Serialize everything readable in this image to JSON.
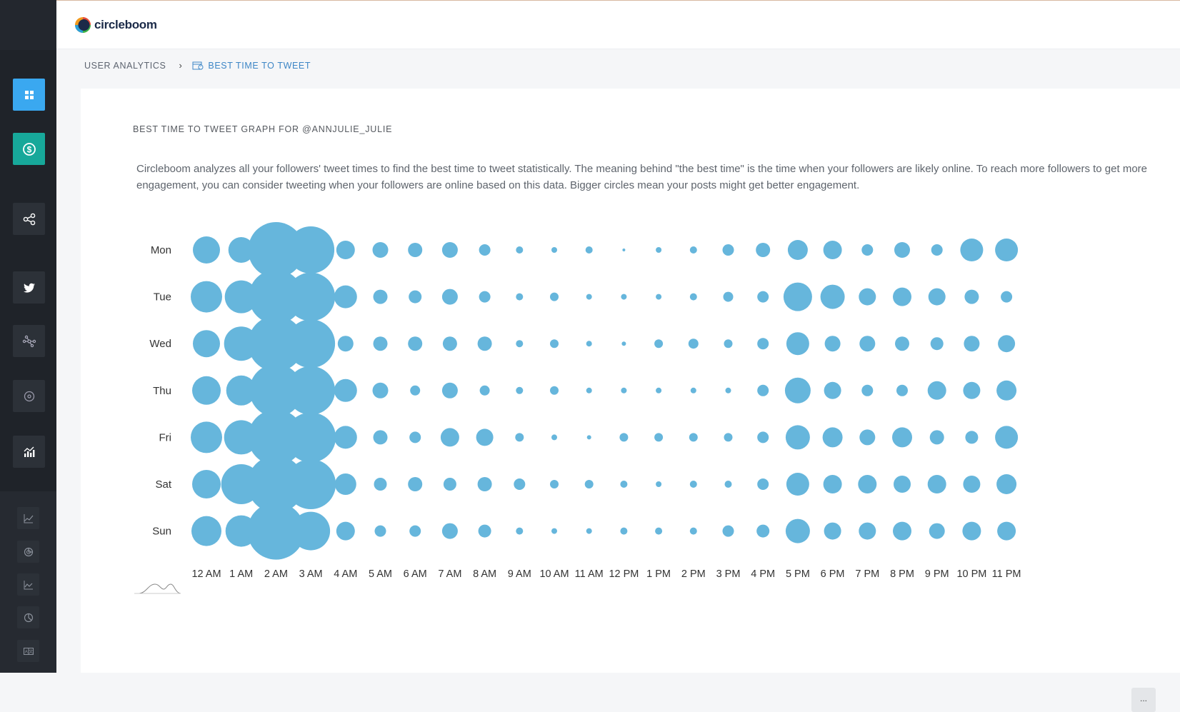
{
  "app": {
    "brand": "circleboom"
  },
  "breadcrumb": {
    "parent": "USER ANALYTICS",
    "current": "BEST TIME TO TWEET"
  },
  "card": {
    "title": "BEST TIME TO TWEET GRAPH FOR @ANNJULIE_JULIE",
    "description": "Circleboom analyzes all your followers' tweet times to find the best time to tweet statistically. The meaning behind \"the best time\" is the time when your followers are likely online. To reach more followers to get more engagement, you can consider tweeting when your followers are online based on this data. Bigger circles mean your posts might get better engagement."
  },
  "menu_button": {
    "label": "..."
  },
  "sidebar": {
    "items": [
      {
        "icon": "dashboard-icon",
        "color": "#3aa8f0"
      },
      {
        "icon": "dollar-circle-icon",
        "color": "#17a89a"
      },
      {
        "icon": "share-icon"
      },
      {
        "icon": "twitter-icon"
      },
      {
        "icon": "network-icon"
      },
      {
        "icon": "target-icon"
      },
      {
        "icon": "analytics-icon"
      }
    ],
    "sub_items": [
      {
        "icon": "line-chart-icon"
      },
      {
        "icon": "pie-chart-icon"
      },
      {
        "icon": "area-chart-icon"
      },
      {
        "icon": "pie-chart-2-icon"
      },
      {
        "icon": "translate-icon"
      }
    ]
  },
  "chart_data": {
    "type": "scatter",
    "title": "",
    "days": [
      "Mon",
      "Tue",
      "Wed",
      "Thu",
      "Fri",
      "Sat",
      "Sun"
    ],
    "hours": [
      "12 AM",
      "1 AM",
      "2 AM",
      "3 AM",
      "4 AM",
      "5 AM",
      "6 AM",
      "7 AM",
      "8 AM",
      "9 AM",
      "10 AM",
      "11 AM",
      "12 PM",
      "1 PM",
      "2 PM",
      "3 PM",
      "4 PM",
      "5 PM",
      "6 PM",
      "7 PM",
      "8 PM",
      "9 PM",
      "10 PM",
      "11 PM"
    ],
    "values": [
      [
        19,
        18,
        39,
        33,
        13,
        11,
        10,
        11,
        8,
        5,
        4,
        5,
        2,
        4,
        5,
        8,
        10,
        14,
        13,
        8,
        11,
        8,
        16,
        16
      ],
      [
        22,
        23,
        38,
        34,
        16,
        10,
        9,
        11,
        8,
        5,
        6,
        4,
        4,
        4,
        5,
        7,
        8,
        20,
        17,
        12,
        13,
        12,
        10,
        8
      ],
      [
        19,
        24,
        39,
        34,
        11,
        10,
        10,
        10,
        10,
        5,
        6,
        4,
        3,
        6,
        7,
        6,
        8,
        16,
        11,
        11,
        10,
        9,
        11,
        12
      ],
      [
        20,
        21,
        37,
        34,
        16,
        11,
        7,
        11,
        7,
        5,
        6,
        4,
        4,
        4,
        4,
        4,
        8,
        18,
        12,
        8,
        8,
        13,
        12,
        14
      ],
      [
        22,
        24,
        39,
        35,
        16,
        10,
        8,
        13,
        12,
        6,
        4,
        3,
        6,
        6,
        6,
        6,
        8,
        17,
        14,
        11,
        14,
        10,
        9,
        16
      ],
      [
        20,
        28,
        40,
        35,
        15,
        9,
        10,
        9,
        10,
        8,
        6,
        6,
        5,
        4,
        5,
        5,
        8,
        16,
        13,
        13,
        12,
        13,
        12,
        14
      ],
      [
        21,
        22,
        40,
        27,
        13,
        8,
        8,
        11,
        9,
        5,
        4,
        4,
        5,
        5,
        5,
        8,
        9,
        17,
        12,
        12,
        13,
        11,
        13,
        13
      ]
    ],
    "bubble_color": "#66b6dc",
    "xlabel": "",
    "ylabel": "",
    "legend": "none"
  }
}
